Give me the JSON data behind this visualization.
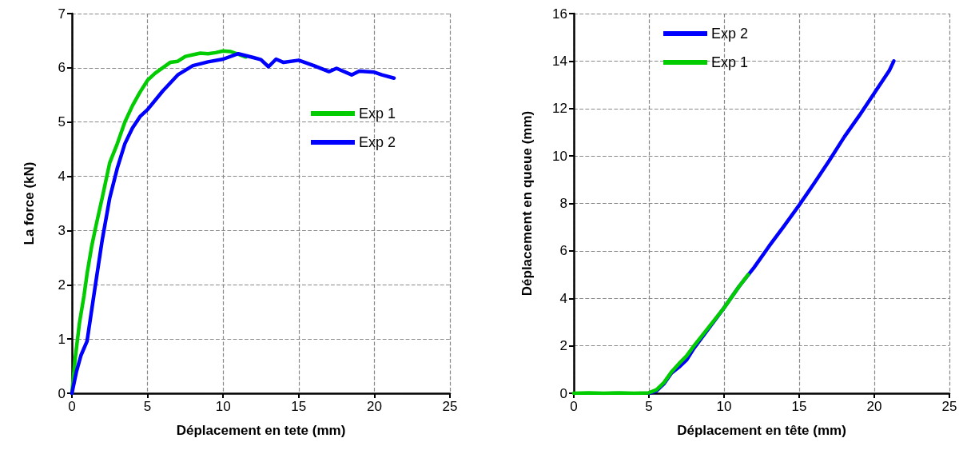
{
  "chart_data": [
    {
      "type": "line",
      "xlabel": "Déplacement en tete (mm)",
      "ylabel": "La force (kN)",
      "xlim": [
        0,
        25
      ],
      "xticks": [
        0,
        5,
        10,
        15,
        20,
        25
      ],
      "ylim": [
        0,
        7
      ],
      "yticks": [
        0,
        1,
        2,
        3,
        4,
        5,
        6,
        7
      ],
      "grid": true,
      "legend": "right",
      "marker": "none",
      "line_style": "solid",
      "series": [
        {
          "name": "Exp 1",
          "color": "#00cc00",
          "x": [
            0,
            0.2,
            0.5,
            0.8,
            1,
            1.3,
            1.6,
            2,
            2.5,
            3,
            3.5,
            4,
            4.5,
            5,
            5.5,
            6,
            6.5,
            7,
            7.5,
            8,
            8.5,
            9,
            9.5,
            10,
            10.5,
            11,
            11.5
          ],
          "values": [
            0,
            0.6,
            1.3,
            1.8,
            2.2,
            2.7,
            3.1,
            3.6,
            4.25,
            4.6,
            5.0,
            5.3,
            5.55,
            5.77,
            5.9,
            6.0,
            6.1,
            6.12,
            6.21,
            6.24,
            6.27,
            6.26,
            6.28,
            6.31,
            6.3,
            6.25,
            6.2
          ]
        },
        {
          "name": "Exp 2",
          "color": "#0000ff",
          "x": [
            0,
            0.3,
            0.6,
            1,
            1.5,
            2,
            2.5,
            3,
            3.5,
            4,
            4.5,
            5,
            6,
            7,
            8,
            9,
            10,
            11,
            12,
            12.5,
            13,
            13.5,
            14,
            15,
            16,
            17,
            17.5,
            18.5,
            19,
            20,
            20.5,
            21.3
          ],
          "values": [
            0,
            0.4,
            0.7,
            0.96,
            1.9,
            2.82,
            3.6,
            4.15,
            4.6,
            4.89,
            5.1,
            5.23,
            5.57,
            5.87,
            6.04,
            6.11,
            6.16,
            6.26,
            6.19,
            6.15,
            6.02,
            6.16,
            6.1,
            6.14,
            6.04,
            5.93,
            5.99,
            5.87,
            5.94,
            5.92,
            5.87,
            5.81
          ]
        }
      ]
    },
    {
      "type": "line",
      "xlabel": "Déplacement en tête (mm)",
      "ylabel": "Déplacement en queue (mm)",
      "xlim": [
        0,
        25
      ],
      "xticks": [
        0,
        5,
        10,
        15,
        20,
        25
      ],
      "ylim": [
        0,
        16
      ],
      "yticks": [
        0,
        2,
        4,
        6,
        8,
        10,
        12,
        14,
        16
      ],
      "grid": true,
      "legend": "top left",
      "marker": "none",
      "line_style": "solid",
      "series": [
        {
          "name": "Exp 2",
          "color": "#0000ff",
          "x": [
            5,
            5.5,
            6,
            6.5,
            7,
            7.5,
            8,
            9,
            10,
            11,
            12,
            13,
            14,
            15,
            16,
            17,
            18,
            19,
            20,
            21,
            21.3
          ],
          "values": [
            0,
            0.1,
            0.4,
            0.85,
            1.1,
            1.4,
            1.9,
            2.75,
            3.6,
            4.5,
            5.3,
            6.2,
            7.05,
            7.93,
            8.85,
            9.8,
            10.8,
            11.7,
            12.65,
            13.6,
            14.0
          ]
        },
        {
          "name": "Exp 1",
          "color": "#00cc00",
          "x": [
            0,
            1,
            2,
            3,
            4,
            5,
            5.5,
            6,
            6.5,
            7,
            7.5,
            8,
            9,
            10,
            11,
            11.6
          ],
          "values": [
            0,
            0.02,
            0,
            0.02,
            0,
            0.02,
            0.15,
            0.45,
            0.9,
            1.25,
            1.57,
            2.0,
            2.8,
            3.6,
            4.5,
            5.0
          ]
        }
      ]
    }
  ]
}
